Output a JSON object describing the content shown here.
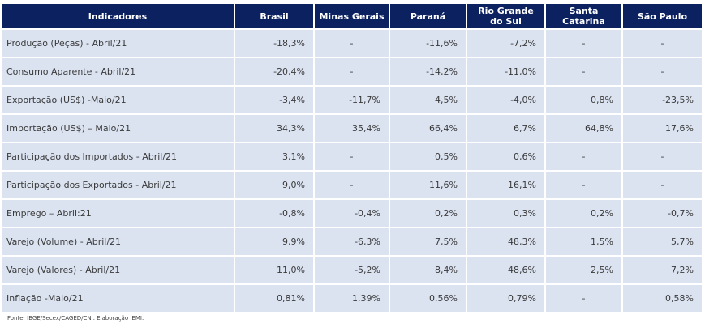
{
  "table": {
    "headers": [
      "Indicadores",
      "Brasil",
      "Minas Gerais",
      "Paraná",
      "Rio Grande do Sul",
      "Santa Catarina",
      "São Paulo"
    ],
    "rows": [
      {
        "label": "Produção (Peças) - Abril/21",
        "values": [
          "-18,3%",
          "-",
          "-11,6%",
          "-7,2%",
          "-",
          "-"
        ]
      },
      {
        "label": "Consumo Aparente - Abril/21",
        "values": [
          "-20,4%",
          "-",
          "-14,2%",
          "-11,0%",
          "-",
          "-"
        ]
      },
      {
        "label": "Exportação (US$) -Maio/21",
        "values": [
          "-3,4%",
          "-11,7%",
          "4,5%",
          "-4,0%",
          "0,8%",
          "-23,5%"
        ]
      },
      {
        "label": "Importação (US$) – Maio/21",
        "values": [
          "34,3%",
          "35,4%",
          "66,4%",
          "6,7%",
          "64,8%",
          "17,6%"
        ]
      },
      {
        "label": "Participação dos Importados - Abril/21",
        "values": [
          "3,1%",
          "-",
          "0,5%",
          "0,6%",
          "-",
          "-"
        ]
      },
      {
        "label": "Participação dos Exportados - Abril/21",
        "values": [
          "9,0%",
          "-",
          "11,6%",
          "16,1%",
          "-",
          "-"
        ]
      },
      {
        "label": "Emprego – Abril:21",
        "values": [
          "-0,8%",
          "-0,4%",
          "0,2%",
          "0,3%",
          "0,2%",
          "-0,7%"
        ]
      },
      {
        "label": "Varejo (Volume) - Abril/21",
        "values": [
          "9,9%",
          "-6,3%",
          "7,5%",
          "48,3%",
          "1,5%",
          "5,7%"
        ]
      },
      {
        "label": "Varejo (Valores) - Abril/21",
        "values": [
          "11,0%",
          "-5,2%",
          "8,4%",
          "48,6%",
          "2,5%",
          "7,2%"
        ]
      },
      {
        "label": "Inflação -Maio/21",
        "values": [
          "0,81%",
          "1,39%",
          "0,56%",
          "0,79%",
          "-",
          "0,58%"
        ]
      }
    ]
  },
  "source": "Fonte: IBGE/Secex/CAGED/CNI. Elaboração IEMI."
}
